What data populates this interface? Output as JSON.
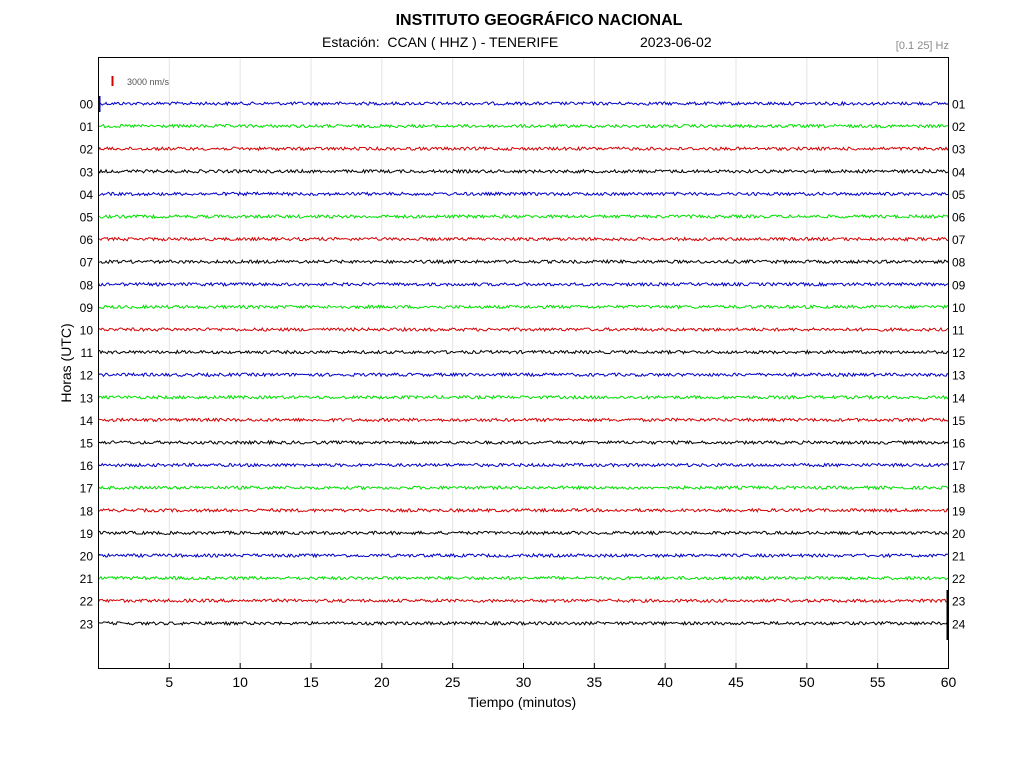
{
  "header": {
    "title": "INSTITUTO GEOGRÁFICO NACIONAL",
    "station_label": "Estación:  CCAN ( HHZ ) - TENERIFE",
    "date": "2023-06-02",
    "filter": "[0.1 25] Hz"
  },
  "chart_data": {
    "type": "line",
    "title": "INSTITUTO GEOGRÁFICO NACIONAL",
    "xlabel": "Tiempo (minutos)",
    "ylabel": "Horas (UTC)",
    "xlim": [
      0,
      60
    ],
    "x_ticks": [
      5,
      10,
      15,
      20,
      25,
      30,
      35,
      40,
      45,
      50,
      55,
      60
    ],
    "left_hour_labels": [
      "00",
      "01",
      "02",
      "03",
      "04",
      "05",
      "06",
      "07",
      "08",
      "09",
      "10",
      "11",
      "12",
      "13",
      "14",
      "15",
      "16",
      "17",
      "18",
      "19",
      "20",
      "21",
      "22",
      "23"
    ],
    "right_hour_labels": [
      "01",
      "02",
      "03",
      "04",
      "05",
      "06",
      "07",
      "08",
      "09",
      "10",
      "11",
      "12",
      "13",
      "14",
      "15",
      "16",
      "17",
      "18",
      "19",
      "20",
      "21",
      "22",
      "23",
      "24"
    ],
    "trace_colors": [
      "#0000c8",
      "#00e000",
      "#d40000",
      "#000000"
    ],
    "scale_label": "3000 nm/s",
    "scale_color": "#d40000",
    "grid": "vertical",
    "series_count": 24
  }
}
